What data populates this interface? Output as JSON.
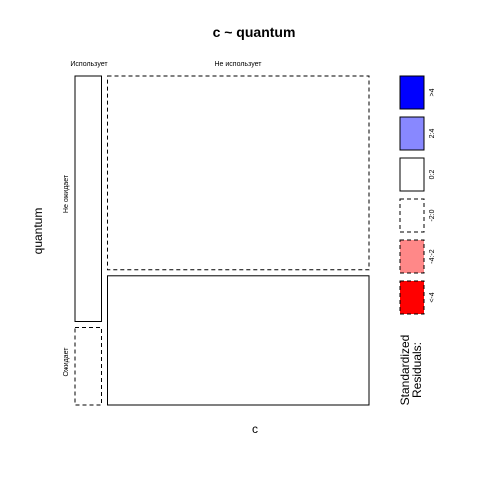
{
  "chart_data": {
    "type": "mosaic",
    "title": "c ~ quantum",
    "xlabel": "c",
    "ylabel": "quantum",
    "x_categories": [
      "Использует",
      "Не использует"
    ],
    "y_categories": [
      "Не ожидает",
      "Ожидает"
    ],
    "column_proportions": [
      0.092,
      0.908
    ],
    "cells": [
      {
        "x": "Использует",
        "y": "Не ожидает",
        "proportion": 0.76,
        "residual_class": "0:2"
      },
      {
        "x": "Использует",
        "y": "Ожидает",
        "proportion": 0.24,
        "residual_class": "-2:0"
      },
      {
        "x": "Не использует",
        "y": "Не ожидает",
        "proportion": 0.6,
        "residual_class": "-2:0"
      },
      {
        "x": "Не использует",
        "y": "Ожидает",
        "proportion": 0.4,
        "residual_class": "0:2"
      }
    ],
    "legend": {
      "title_line1": "Standardized",
      "title_line2": "Residuals:",
      "entries": [
        {
          "label": ">4",
          "color": "#0000ff",
          "dashed": false
        },
        {
          "label": "2:4",
          "color": "#8888ff",
          "dashed": false
        },
        {
          "label": "0:2",
          "color": "#ffffff",
          "dashed": false
        },
        {
          "label": "-2:0",
          "color": "#ffffff",
          "dashed": true
        },
        {
          "label": "-4:-2",
          "color": "#ff8888",
          "dashed": true
        },
        {
          "label": "<-4",
          "color": "#ff0000",
          "dashed": true
        }
      ]
    }
  }
}
